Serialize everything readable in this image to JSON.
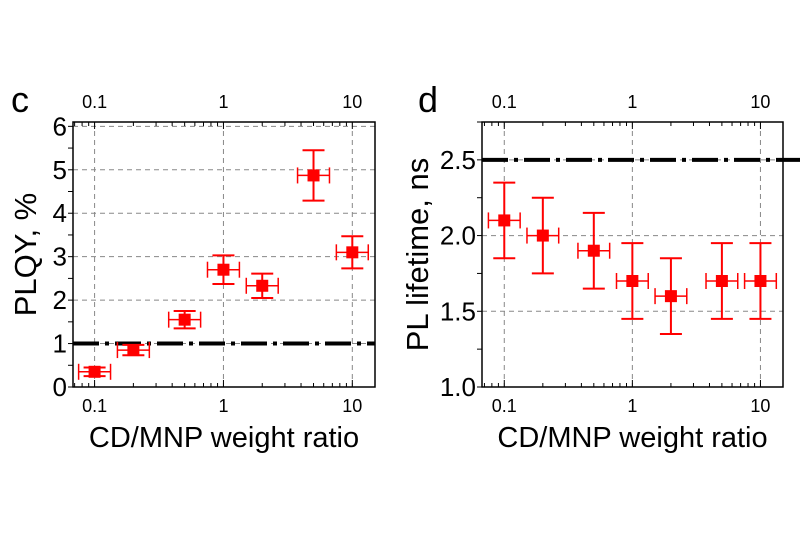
{
  "chart_data": [
    {
      "type": "scatter",
      "panel_label": "c",
      "xlabel": "CD/MNP weight ratio",
      "ylabel": "PLQY, %",
      "xscale": "log",
      "xlim": [
        0.068,
        15
      ],
      "ylim": [
        0,
        6.1
      ],
      "xticks": [
        "0.1",
        "1",
        "10"
      ],
      "yticks": [
        "0",
        "1",
        "2",
        "3",
        "4",
        "5",
        "6"
      ],
      "grid": "dashed gray at major ticks",
      "x": [
        0.1,
        0.2,
        0.5,
        1,
        2,
        5,
        10
      ],
      "y": [
        0.35,
        0.85,
        1.55,
        2.7,
        2.33,
        4.87,
        3.1
      ],
      "yerr": [
        0.1,
        0.12,
        0.2,
        0.33,
        0.28,
        0.58,
        0.37
      ],
      "xerr_factor": 1.33,
      "reference_line": {
        "y": 1,
        "style": "dash-dot",
        "color": "#000000"
      },
      "marker_color": "#ff0000"
    },
    {
      "type": "scatter",
      "panel_label": "d",
      "xlabel": "CD/MNP weight ratio",
      "ylabel": "PL lifetime, ns",
      "xscale": "log",
      "xlim": [
        0.067,
        15
      ],
      "ylim": [
        1.0,
        2.75
      ],
      "xticks": [
        "0.1",
        "1",
        "10"
      ],
      "yticks": [
        "1.0",
        "1.5",
        "2.0",
        "2.5"
      ],
      "grid": "dashed gray at major ticks",
      "x": [
        0.1,
        0.2,
        0.5,
        1,
        2,
        5,
        10
      ],
      "y": [
        2.1,
        2.0,
        1.9,
        1.7,
        1.6,
        1.7,
        1.7
      ],
      "yerr": [
        0.25,
        0.25,
        0.25,
        0.25,
        0.25,
        0.25,
        0.25
      ],
      "xerr_factor": 1.33,
      "reference_line": {
        "y": 2.5,
        "style": "dash-dot",
        "color": "#000000"
      },
      "marker_color": "#ff0000"
    }
  ]
}
